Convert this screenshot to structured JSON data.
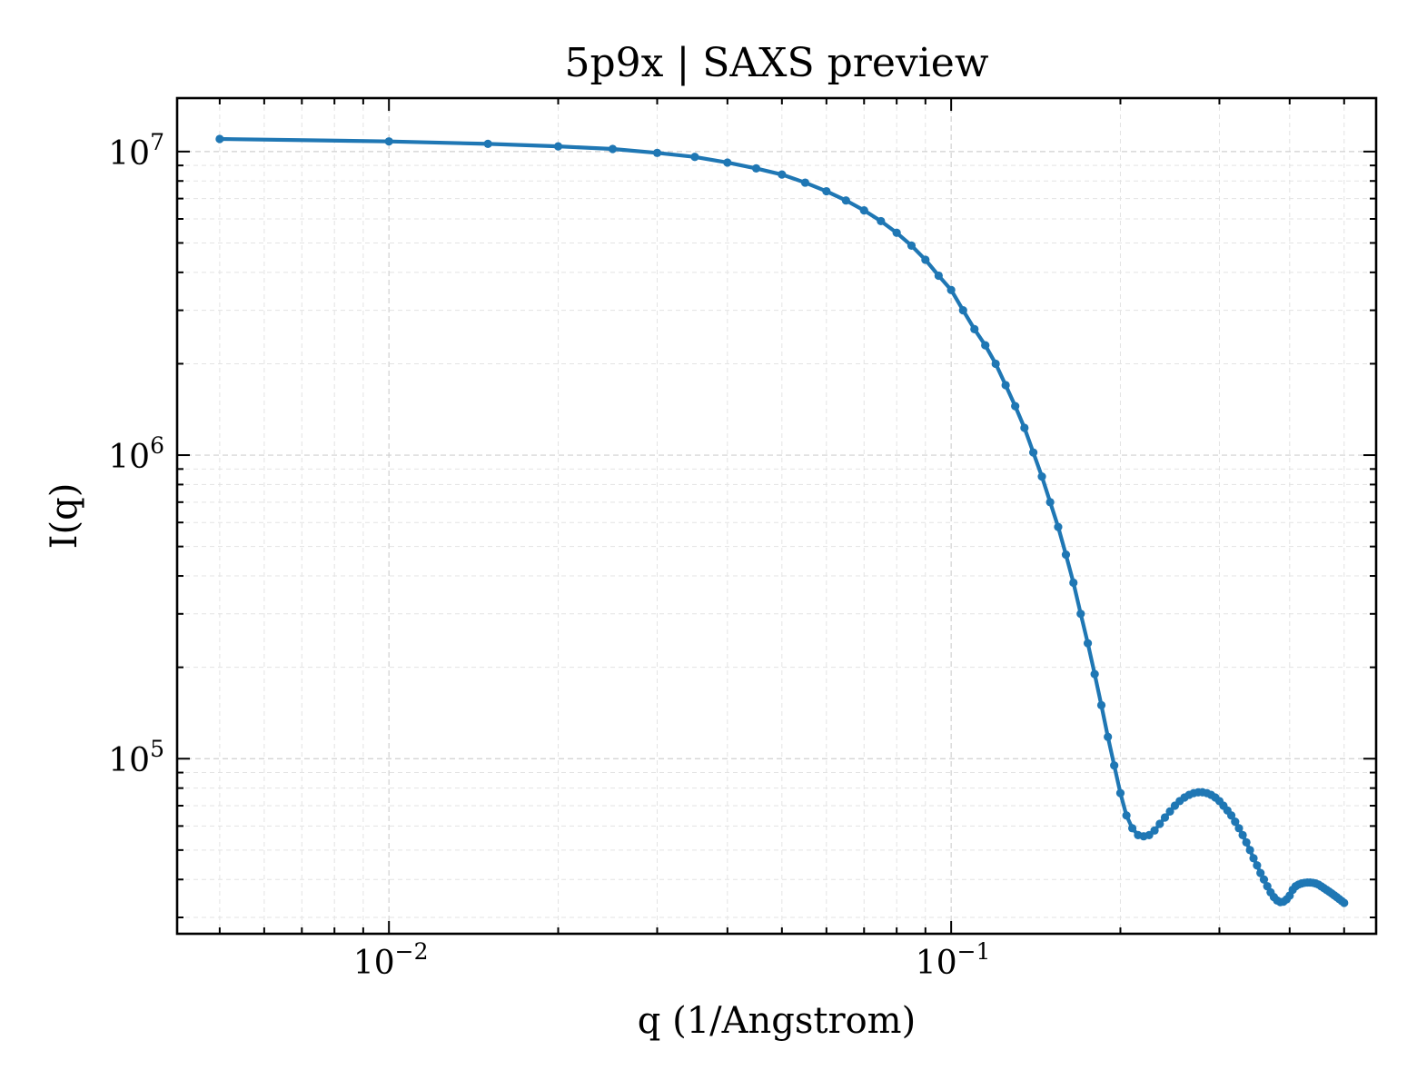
{
  "chart_data": {
    "type": "line",
    "title": "5p9x | SAXS preview",
    "xlabel": "q (1/Angstrom)",
    "ylabel": "I(q)",
    "xscale": "log",
    "yscale": "log",
    "xlim": [
      0.0042,
      0.57
    ],
    "ylim": [
      26500,
      15000000
    ],
    "xticks": [
      {
        "value": 0.01,
        "base": "10",
        "exp": "−2"
      },
      {
        "value": 0.1,
        "base": "10",
        "exp": "−1"
      }
    ],
    "yticks": [
      {
        "value": 100000,
        "base": "10",
        "exp": "5"
      },
      {
        "value": 1000000,
        "base": "10",
        "exp": "6"
      },
      {
        "value": 10000000,
        "base": "10",
        "exp": "7"
      }
    ],
    "grid": true,
    "line_color": "#1f77b4",
    "series": [
      {
        "x": [
          0.005,
          0.01,
          0.015,
          0.02,
          0.025,
          0.03,
          0.035,
          0.04,
          0.045,
          0.05,
          0.055,
          0.06,
          0.065,
          0.07,
          0.075,
          0.08,
          0.085,
          0.09,
          0.095,
          0.1,
          0.105,
          0.11,
          0.115,
          0.12,
          0.125,
          0.13,
          0.135,
          0.14,
          0.145,
          0.15,
          0.155,
          0.16,
          0.165,
          0.17,
          0.175,
          0.18,
          0.185,
          0.19,
          0.195,
          0.2,
          0.205,
          0.21,
          0.215,
          0.22,
          0.225,
          0.23,
          0.235,
          0.24,
          0.245,
          0.25,
          0.255,
          0.26,
          0.265,
          0.27,
          0.275,
          0.28,
          0.285,
          0.29,
          0.295,
          0.3,
          0.305,
          0.31,
          0.315,
          0.32,
          0.325,
          0.33,
          0.335,
          0.34,
          0.345,
          0.35,
          0.355,
          0.36,
          0.365,
          0.37,
          0.375,
          0.38,
          0.385,
          0.39,
          0.395,
          0.4,
          0.405,
          0.41,
          0.415,
          0.42,
          0.425,
          0.43,
          0.435,
          0.44,
          0.445,
          0.45,
          0.455,
          0.46,
          0.465,
          0.47,
          0.475,
          0.48,
          0.485,
          0.49,
          0.495,
          0.5
        ],
        "y": [
          11000000,
          10800000,
          10600000,
          10400000,
          10200000,
          9900000,
          9600000,
          9200000,
          8800000,
          8400000,
          7900000,
          7400000,
          6900000,
          6400000,
          5900000,
          5400000,
          4900000,
          4400000,
          3900000,
          3500000,
          3000000,
          2600000,
          2300000,
          2000000,
          1700000,
          1450000,
          1230000,
          1020000,
          850000,
          700000,
          580000,
          470000,
          380000,
          300000,
          240000,
          190000,
          150000,
          118000,
          95000,
          77000,
          65000,
          59000,
          56000,
          55500,
          56000,
          58000,
          61000,
          64000,
          67000,
          70000,
          72500,
          74500,
          76000,
          77000,
          77500,
          77500,
          77000,
          76000,
          74500,
          72500,
          70000,
          67500,
          65000,
          62000,
          59000,
          56000,
          53000,
          50000,
          47000,
          44500,
          42000,
          40000,
          38000,
          36300,
          35000,
          34100,
          33700,
          33800,
          34400,
          35400,
          37000,
          38000,
          38500,
          38800,
          39000,
          39100,
          39100,
          39000,
          38800,
          38500,
          38000,
          37500,
          37000,
          36500,
          36000,
          35500,
          35000,
          34500,
          34000,
          33500
        ]
      }
    ]
  }
}
